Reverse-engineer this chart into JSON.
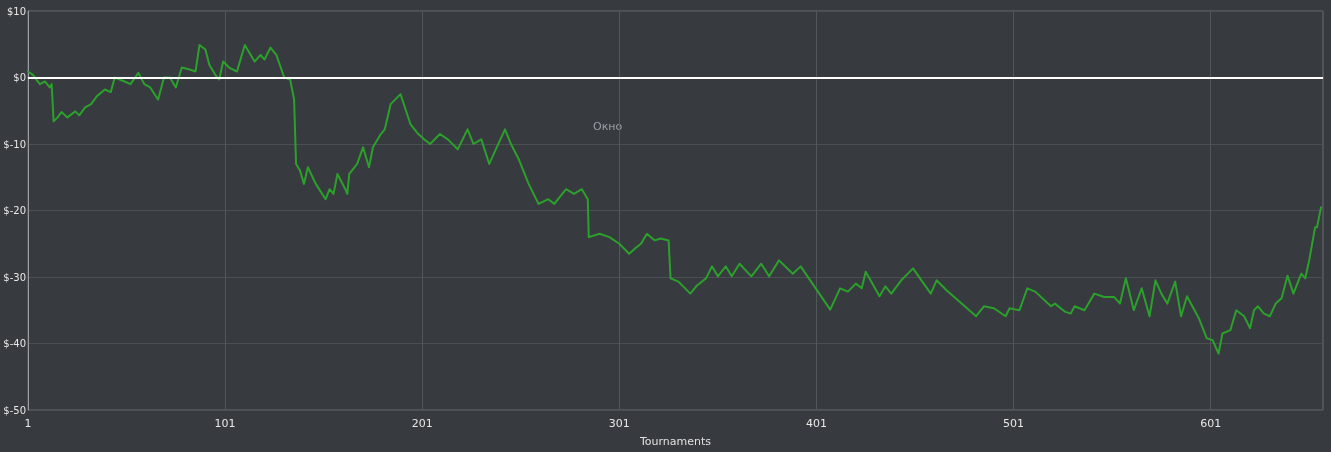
{
  "chart_data": {
    "type": "line",
    "xlabel": "Tournaments",
    "annotations": [
      "Окно"
    ],
    "x": [
      1,
      3.5,
      7,
      9.6,
      12,
      13,
      14,
      16,
      18,
      21,
      25,
      27,
      30,
      33,
      36,
      40,
      43,
      45,
      50,
      53,
      57,
      60,
      63,
      67,
      70,
      73,
      76,
      79,
      83,
      86,
      88,
      91,
      93,
      96,
      98,
      100,
      103,
      107,
      108,
      111,
      114,
      116,
      119,
      121,
      124,
      127,
      131,
      134,
      136,
      137,
      139,
      141,
      143,
      147,
      152,
      154,
      156,
      158,
      162,
      163,
      164,
      168,
      171,
      174,
      176,
      180,
      182,
      185,
      190,
      195,
      199,
      202,
      205,
      210,
      214,
      219,
      224,
      227,
      231,
      235,
      243,
      246,
      250,
      255,
      260,
      265,
      268,
      274,
      278,
      282,
      285,
      285.5,
      291,
      296,
      301,
      306,
      309,
      312,
      315,
      319,
      322,
      326,
      327,
      331,
      337,
      340,
      345,
      348,
      351,
      355,
      358,
      362,
      368,
      373,
      377,
      382,
      389,
      393,
      408,
      413,
      417,
      421,
      424,
      426,
      433,
      436,
      439,
      444,
      446,
      450,
      459,
      462,
      467,
      482,
      486,
      491,
      497,
      499,
      504,
      508,
      512,
      520,
      522,
      527,
      530,
      532,
      537,
      540,
      542,
      547,
      552,
      555,
      558,
      562,
      566,
      570,
      573,
      576,
      579,
      583,
      586,
      589,
      595,
      599,
      602,
      605,
      607,
      611,
      614,
      618,
      621,
      623,
      625,
      628,
      631,
      634,
      637,
      640,
      643,
      647,
      649,
      651,
      654,
      655,
      657
    ],
    "series": [
      {
        "color": "#2ca02c",
        "values": [
          0.9,
          0.4,
          -1,
          -0.6,
          -1.5,
          -1,
          -6.6,
          -6,
          -5.2,
          -6,
          -5.1,
          -5.7,
          -4.5,
          -4,
          -2.8,
          -1.8,
          -2.2,
          0,
          -0.6,
          -1,
          0.7,
          -1,
          -1.5,
          -3.3,
          0,
          0,
          -1.5,
          1.5,
          1.2,
          0.9,
          4.9,
          4.2,
          1.9,
          0.4,
          -0.3,
          2.4,
          1.5,
          0.9,
          1.9,
          4.9,
          3.4,
          2.4,
          3.4,
          2.7,
          4.5,
          3.4,
          0,
          -0.3,
          -3.3,
          -13,
          -14,
          -16,
          -13.5,
          -16,
          -18.3,
          -16.8,
          -17.5,
          -14.5,
          -16.8,
          -17.5,
          -14.5,
          -13,
          -10.5,
          -13.5,
          -10.5,
          -8.5,
          -7.8,
          -4,
          -2.5,
          -7,
          -8.5,
          -9.3,
          -10,
          -8.5,
          -9.3,
          -10.8,
          -7.8,
          -10,
          -9.3,
          -13,
          -7.8,
          -10,
          -12.3,
          -16,
          -19,
          -18.3,
          -19,
          -16.8,
          -17.5,
          -16.8,
          -18.3,
          -24,
          -23.5,
          -24,
          -25,
          -26.5,
          -25.7,
          -25,
          -23.5,
          -24.5,
          -24.2,
          -24.5,
          -30.2,
          -30.7,
          -32.5,
          -31.4,
          -30.2,
          -28.4,
          -29.9,
          -28.4,
          -29.9,
          -28,
          -29.9,
          -28,
          -29.9,
          -27.5,
          -29.5,
          -28.4,
          -34.9,
          -31.7,
          -32.2,
          -31,
          -31.7,
          -29.2,
          -32.9,
          -31.4,
          -32.5,
          -30.5,
          -29.9,
          -28.7,
          -32.5,
          -30.5,
          -32,
          -35.9,
          -34.4,
          -34.7,
          -35.9,
          -34.7,
          -35,
          -31.7,
          -32.2,
          -34.4,
          -34,
          -35.2,
          -35.5,
          -34.4,
          -35,
          -33.5,
          -32.5,
          -33,
          -33,
          -34,
          -30.2,
          -35,
          -31.7,
          -35.9,
          -30.5,
          -32.5,
          -34,
          -30.7,
          -35.9,
          -32.9,
          -36.2,
          -39.2,
          -39.5,
          -41.5,
          -38.5,
          -38,
          -35,
          -35.9,
          -37.7,
          -35,
          -34.4,
          -35.5,
          -35.9,
          -34,
          -33.2,
          -29.8,
          -32.5,
          -29.5,
          -30.2,
          -27.5,
          -22.5,
          -22.5,
          -19.5
        ]
      }
    ],
    "xlim": [
      1,
      658
    ],
    "xticks": [
      1,
      101,
      201,
      301,
      401,
      501,
      601
    ],
    "ylim": [
      -50,
      10
    ],
    "yticks": [
      {
        "value": -50,
        "label": "$-50"
      },
      {
        "value": -40,
        "label": "$-40"
      },
      {
        "value": -30,
        "label": "$-30"
      },
      {
        "value": -20,
        "label": "$-20"
      },
      {
        "value": -10,
        "label": "$-10"
      },
      {
        "value": 0,
        "label": "$0"
      },
      {
        "value": 10,
        "label": "$10"
      }
    ],
    "ref_lines": [
      {
        "axis": "y",
        "value": 0,
        "color": "#ffffff"
      }
    ],
    "grid": true,
    "marker": "none",
    "line_style": "solid"
  }
}
